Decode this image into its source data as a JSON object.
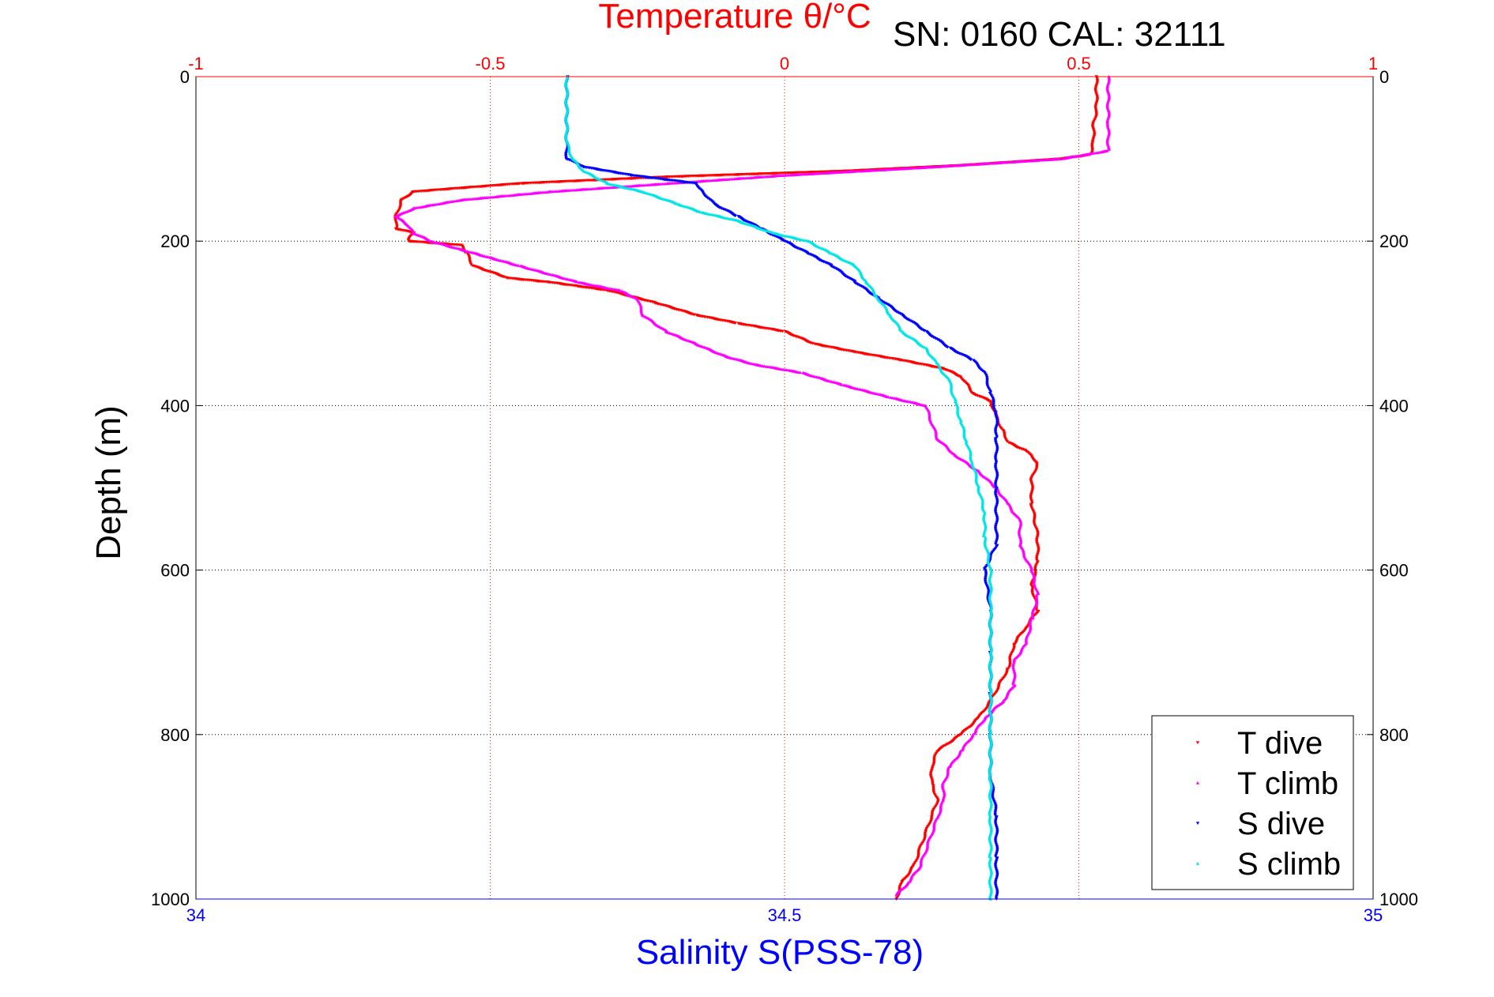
{
  "chart_data": {
    "type": "scatter",
    "title": "Temperature θ/°C",
    "annotation": "SN: 0160  CAL: 32111",
    "ylabel": "Depth (m)",
    "xlabel_bottom": "Salinity S(PSS-78)",
    "xlabel_top": "Temperature θ/°C",
    "ylim": [
      0,
      1000
    ],
    "y_reversed": true,
    "y_ticks": [
      "0",
      "200",
      "400",
      "600",
      "800",
      "1000"
    ],
    "x_top": {
      "lim": [
        -1,
        1
      ],
      "ticks": [
        "-1",
        "-0.5",
        "0",
        "0.5",
        "1"
      ],
      "color": "#ff0000"
    },
    "x_bottom": {
      "lim": [
        34,
        35
      ],
      "ticks": [
        "34",
        "34.5",
        "35"
      ],
      "color": "#0000ff"
    },
    "grid": true,
    "legend_position": "bottom-right",
    "series": [
      {
        "name": "T dive",
        "color": "#ff0000",
        "axis": "top",
        "marker": "down-triangle",
        "points": [
          [
            0.53,
            0
          ],
          [
            0.53,
            40
          ],
          [
            0.525,
            60
          ],
          [
            0.525,
            80
          ],
          [
            0.52,
            95
          ],
          [
            0.47,
            100
          ],
          [
            0.3,
            108
          ],
          [
            0.1,
            115
          ],
          [
            -0.2,
            122
          ],
          [
            -0.45,
            130
          ],
          [
            -0.63,
            140
          ],
          [
            -0.65,
            150
          ],
          [
            -0.66,
            170
          ],
          [
            -0.66,
            185
          ],
          [
            -0.63,
            190
          ],
          [
            -0.64,
            200
          ],
          [
            -0.55,
            205
          ],
          [
            -0.54,
            215
          ],
          [
            -0.53,
            230
          ],
          [
            -0.47,
            245
          ],
          [
            -0.4,
            250
          ],
          [
            -0.3,
            260
          ],
          [
            -0.22,
            275
          ],
          [
            -0.15,
            290
          ],
          [
            -0.08,
            300
          ],
          [
            0.0,
            310
          ],
          [
            0.05,
            325
          ],
          [
            0.12,
            335
          ],
          [
            0.2,
            345
          ],
          [
            0.27,
            355
          ],
          [
            0.3,
            365
          ],
          [
            0.32,
            385
          ],
          [
            0.35,
            395
          ],
          [
            0.36,
            415
          ],
          [
            0.37,
            430
          ],
          [
            0.38,
            445
          ],
          [
            0.41,
            455
          ],
          [
            0.43,
            470
          ],
          [
            0.42,
            490
          ],
          [
            0.42,
            520
          ],
          [
            0.43,
            560
          ],
          [
            0.43,
            590
          ],
          [
            0.42,
            620
          ],
          [
            0.43,
            650
          ],
          [
            0.41,
            670
          ],
          [
            0.39,
            690
          ],
          [
            0.38,
            720
          ],
          [
            0.35,
            760
          ],
          [
            0.33,
            780
          ],
          [
            0.3,
            800
          ],
          [
            0.26,
            820
          ],
          [
            0.25,
            840
          ],
          [
            0.25,
            860
          ],
          [
            0.26,
            880
          ],
          [
            0.25,
            900
          ],
          [
            0.24,
            920
          ],
          [
            0.23,
            940
          ],
          [
            0.22,
            960
          ],
          [
            0.2,
            980
          ],
          [
            0.19,
            1000
          ]
        ]
      },
      {
        "name": "T climb",
        "color": "#ff00ff",
        "axis": "top",
        "marker": "up-triangle",
        "points": [
          [
            0.55,
            0
          ],
          [
            0.55,
            40
          ],
          [
            0.55,
            60
          ],
          [
            0.55,
            90
          ],
          [
            0.47,
            100
          ],
          [
            0.25,
            110
          ],
          [
            0.0,
            120
          ],
          [
            -0.2,
            130
          ],
          [
            -0.4,
            140
          ],
          [
            -0.55,
            150
          ],
          [
            -0.63,
            160
          ],
          [
            -0.66,
            170
          ],
          [
            -0.64,
            180
          ],
          [
            -0.63,
            190
          ],
          [
            -0.6,
            200
          ],
          [
            -0.55,
            210
          ],
          [
            -0.5,
            220
          ],
          [
            -0.45,
            230
          ],
          [
            -0.35,
            250
          ],
          [
            -0.28,
            260
          ],
          [
            -0.25,
            270
          ],
          [
            -0.24,
            290
          ],
          [
            -0.2,
            310
          ],
          [
            -0.15,
            325
          ],
          [
            -0.1,
            340
          ],
          [
            -0.05,
            350
          ],
          [
            0.03,
            360
          ],
          [
            0.1,
            375
          ],
          [
            0.18,
            390
          ],
          [
            0.24,
            400
          ],
          [
            0.25,
            420
          ],
          [
            0.26,
            440
          ],
          [
            0.29,
            460
          ],
          [
            0.33,
            480
          ],
          [
            0.36,
            500
          ],
          [
            0.38,
            520
          ],
          [
            0.4,
            540
          ],
          [
            0.4,
            570
          ],
          [
            0.42,
            600
          ],
          [
            0.43,
            630
          ],
          [
            0.42,
            660
          ],
          [
            0.41,
            690
          ],
          [
            0.39,
            710
          ],
          [
            0.39,
            740
          ],
          [
            0.37,
            760
          ],
          [
            0.34,
            780
          ],
          [
            0.32,
            800
          ],
          [
            0.3,
            820
          ],
          [
            0.28,
            840
          ],
          [
            0.27,
            860
          ],
          [
            0.27,
            880
          ],
          [
            0.26,
            900
          ],
          [
            0.25,
            920
          ],
          [
            0.24,
            940
          ],
          [
            0.23,
            960
          ],
          [
            0.21,
            980
          ],
          [
            0.19,
            995
          ]
        ]
      },
      {
        "name": "S dive",
        "color": "#0000ff",
        "axis": "bottom",
        "marker": "down-triangle",
        "points": [
          [
            34.315,
            0
          ],
          [
            34.315,
            40
          ],
          [
            34.315,
            80
          ],
          [
            34.315,
            100
          ],
          [
            34.33,
            110
          ],
          [
            34.37,
            120
          ],
          [
            34.425,
            130
          ],
          [
            34.43,
            140
          ],
          [
            34.44,
            155
          ],
          [
            34.46,
            170
          ],
          [
            34.48,
            185
          ],
          [
            34.5,
            200
          ],
          [
            34.52,
            215
          ],
          [
            34.54,
            230
          ],
          [
            34.56,
            250
          ],
          [
            34.58,
            270
          ],
          [
            34.6,
            290
          ],
          [
            34.62,
            310
          ],
          [
            34.64,
            330
          ],
          [
            34.66,
            345
          ],
          [
            34.67,
            360
          ],
          [
            34.675,
            385
          ],
          [
            34.68,
            410
          ],
          [
            34.68,
            440
          ],
          [
            34.68,
            470
          ],
          [
            34.68,
            500
          ],
          [
            34.68,
            540
          ],
          [
            34.68,
            570
          ],
          [
            34.67,
            600
          ],
          [
            34.675,
            650
          ],
          [
            34.675,
            700
          ],
          [
            34.675,
            750
          ],
          [
            34.675,
            800
          ],
          [
            34.675,
            850
          ],
          [
            34.68,
            900
          ],
          [
            34.68,
            950
          ],
          [
            34.68,
            1000
          ]
        ]
      },
      {
        "name": "S climb",
        "color": "#00e5e5",
        "axis": "bottom",
        "marker": "up-triangle",
        "points": [
          [
            34.315,
            0
          ],
          [
            34.315,
            40
          ],
          [
            34.315,
            80
          ],
          [
            34.32,
            100
          ],
          [
            34.33,
            115
          ],
          [
            34.35,
            130
          ],
          [
            34.38,
            140
          ],
          [
            34.41,
            155
          ],
          [
            34.43,
            165
          ],
          [
            34.46,
            175
          ],
          [
            34.49,
            190
          ],
          [
            34.52,
            200
          ],
          [
            34.54,
            215
          ],
          [
            34.56,
            230
          ],
          [
            34.57,
            250
          ],
          [
            34.58,
            270
          ],
          [
            34.59,
            290
          ],
          [
            34.6,
            310
          ],
          [
            34.62,
            330
          ],
          [
            34.63,
            350
          ],
          [
            34.64,
            370
          ],
          [
            34.645,
            395
          ],
          [
            34.65,
            420
          ],
          [
            34.655,
            445
          ],
          [
            34.66,
            470
          ],
          [
            34.665,
            500
          ],
          [
            34.67,
            530
          ],
          [
            34.67,
            560
          ],
          [
            34.675,
            600
          ],
          [
            34.675,
            650
          ],
          [
            34.675,
            700
          ],
          [
            34.675,
            750
          ],
          [
            34.675,
            800
          ],
          [
            34.675,
            850
          ],
          [
            34.675,
            900
          ],
          [
            34.675,
            950
          ],
          [
            34.675,
            1000
          ]
        ]
      }
    ]
  }
}
